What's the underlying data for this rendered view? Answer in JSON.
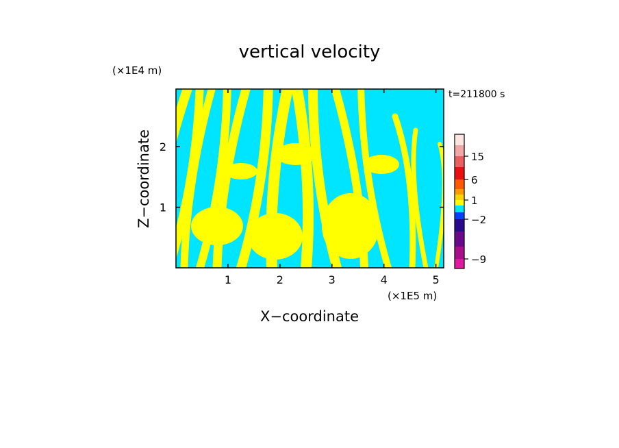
{
  "chart_data": {
    "type": "heatmap",
    "title": "vertical velocity",
    "time_label": "t=211800 s",
    "xlabel": "X−coordinate",
    "ylabel": "Z−coordinate",
    "x_unit": "(×1E5 m)",
    "y_unit": "(×1E4 m)",
    "xlim": [
      0,
      5.15
    ],
    "ylim": [
      0,
      2.95
    ],
    "x_ticks": [
      1,
      2,
      3,
      4,
      5
    ],
    "y_ticks": [
      1,
      2
    ],
    "x_tick_labels": [
      "1",
      "2",
      "3",
      "4",
      "5"
    ],
    "y_tick_labels": [
      "1",
      "2"
    ],
    "field_colors": {
      "positive": "#ffff00",
      "negative": "#00e5ff"
    },
    "colorbar": {
      "levels": [
        -12,
        -9,
        -6,
        -4,
        -2,
        -1,
        0,
        1,
        2,
        4,
        6,
        10,
        15,
        20,
        25
      ],
      "colors": [
        "#e01aa0",
        "#a8108a",
        "#6a0a8a",
        "#2a0a8c",
        "#0040ff",
        "#00e5ff",
        "#ffff00",
        "#ffd400",
        "#ff9a00",
        "#ff5a00",
        "#e81010",
        "#e86060",
        "#f0a8a8",
        "#fde6e2"
      ],
      "tick_values": [
        15,
        6,
        1,
        -2,
        -9
      ],
      "tick_labels": [
        "15",
        "6",
        "1",
        "−2",
        "−9"
      ]
    }
  }
}
